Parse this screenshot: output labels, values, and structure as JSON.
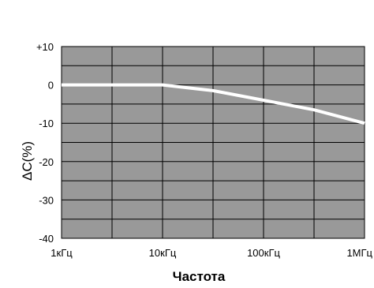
{
  "chart_data": {
    "type": "line",
    "title": "",
    "xlabel": "Частота",
    "ylabel": "ΔC(%)",
    "x_scale": "log",
    "xlim": [
      1000,
      1000000
    ],
    "ylim": [
      -40,
      10
    ],
    "x_ticks": [
      {
        "value": 1000,
        "label": "1кГц"
      },
      {
        "value": 10000,
        "label": "10кГц"
      },
      {
        "value": 100000,
        "label": "100кГц"
      },
      {
        "value": 1000000,
        "label": "1МГц"
      }
    ],
    "y_ticks": [
      {
        "value": 10,
        "label": "+10"
      },
      {
        "value": 0,
        "label": "0"
      },
      {
        "value": -10,
        "label": "-10"
      },
      {
        "value": -20,
        "label": "-20"
      },
      {
        "value": -30,
        "label": "-30"
      },
      {
        "value": -40,
        "label": "-40"
      }
    ],
    "grid": true,
    "series": [
      {
        "x": [
          1000,
          10000,
          31600,
          100000,
          316000,
          1000000
        ],
        "y": [
          0,
          0,
          -1.5,
          -4,
          -6.5,
          -10
        ]
      }
    ],
    "colors": {
      "plot_background": "#999999",
      "grid": "#000000",
      "line": "#ffffff"
    }
  }
}
